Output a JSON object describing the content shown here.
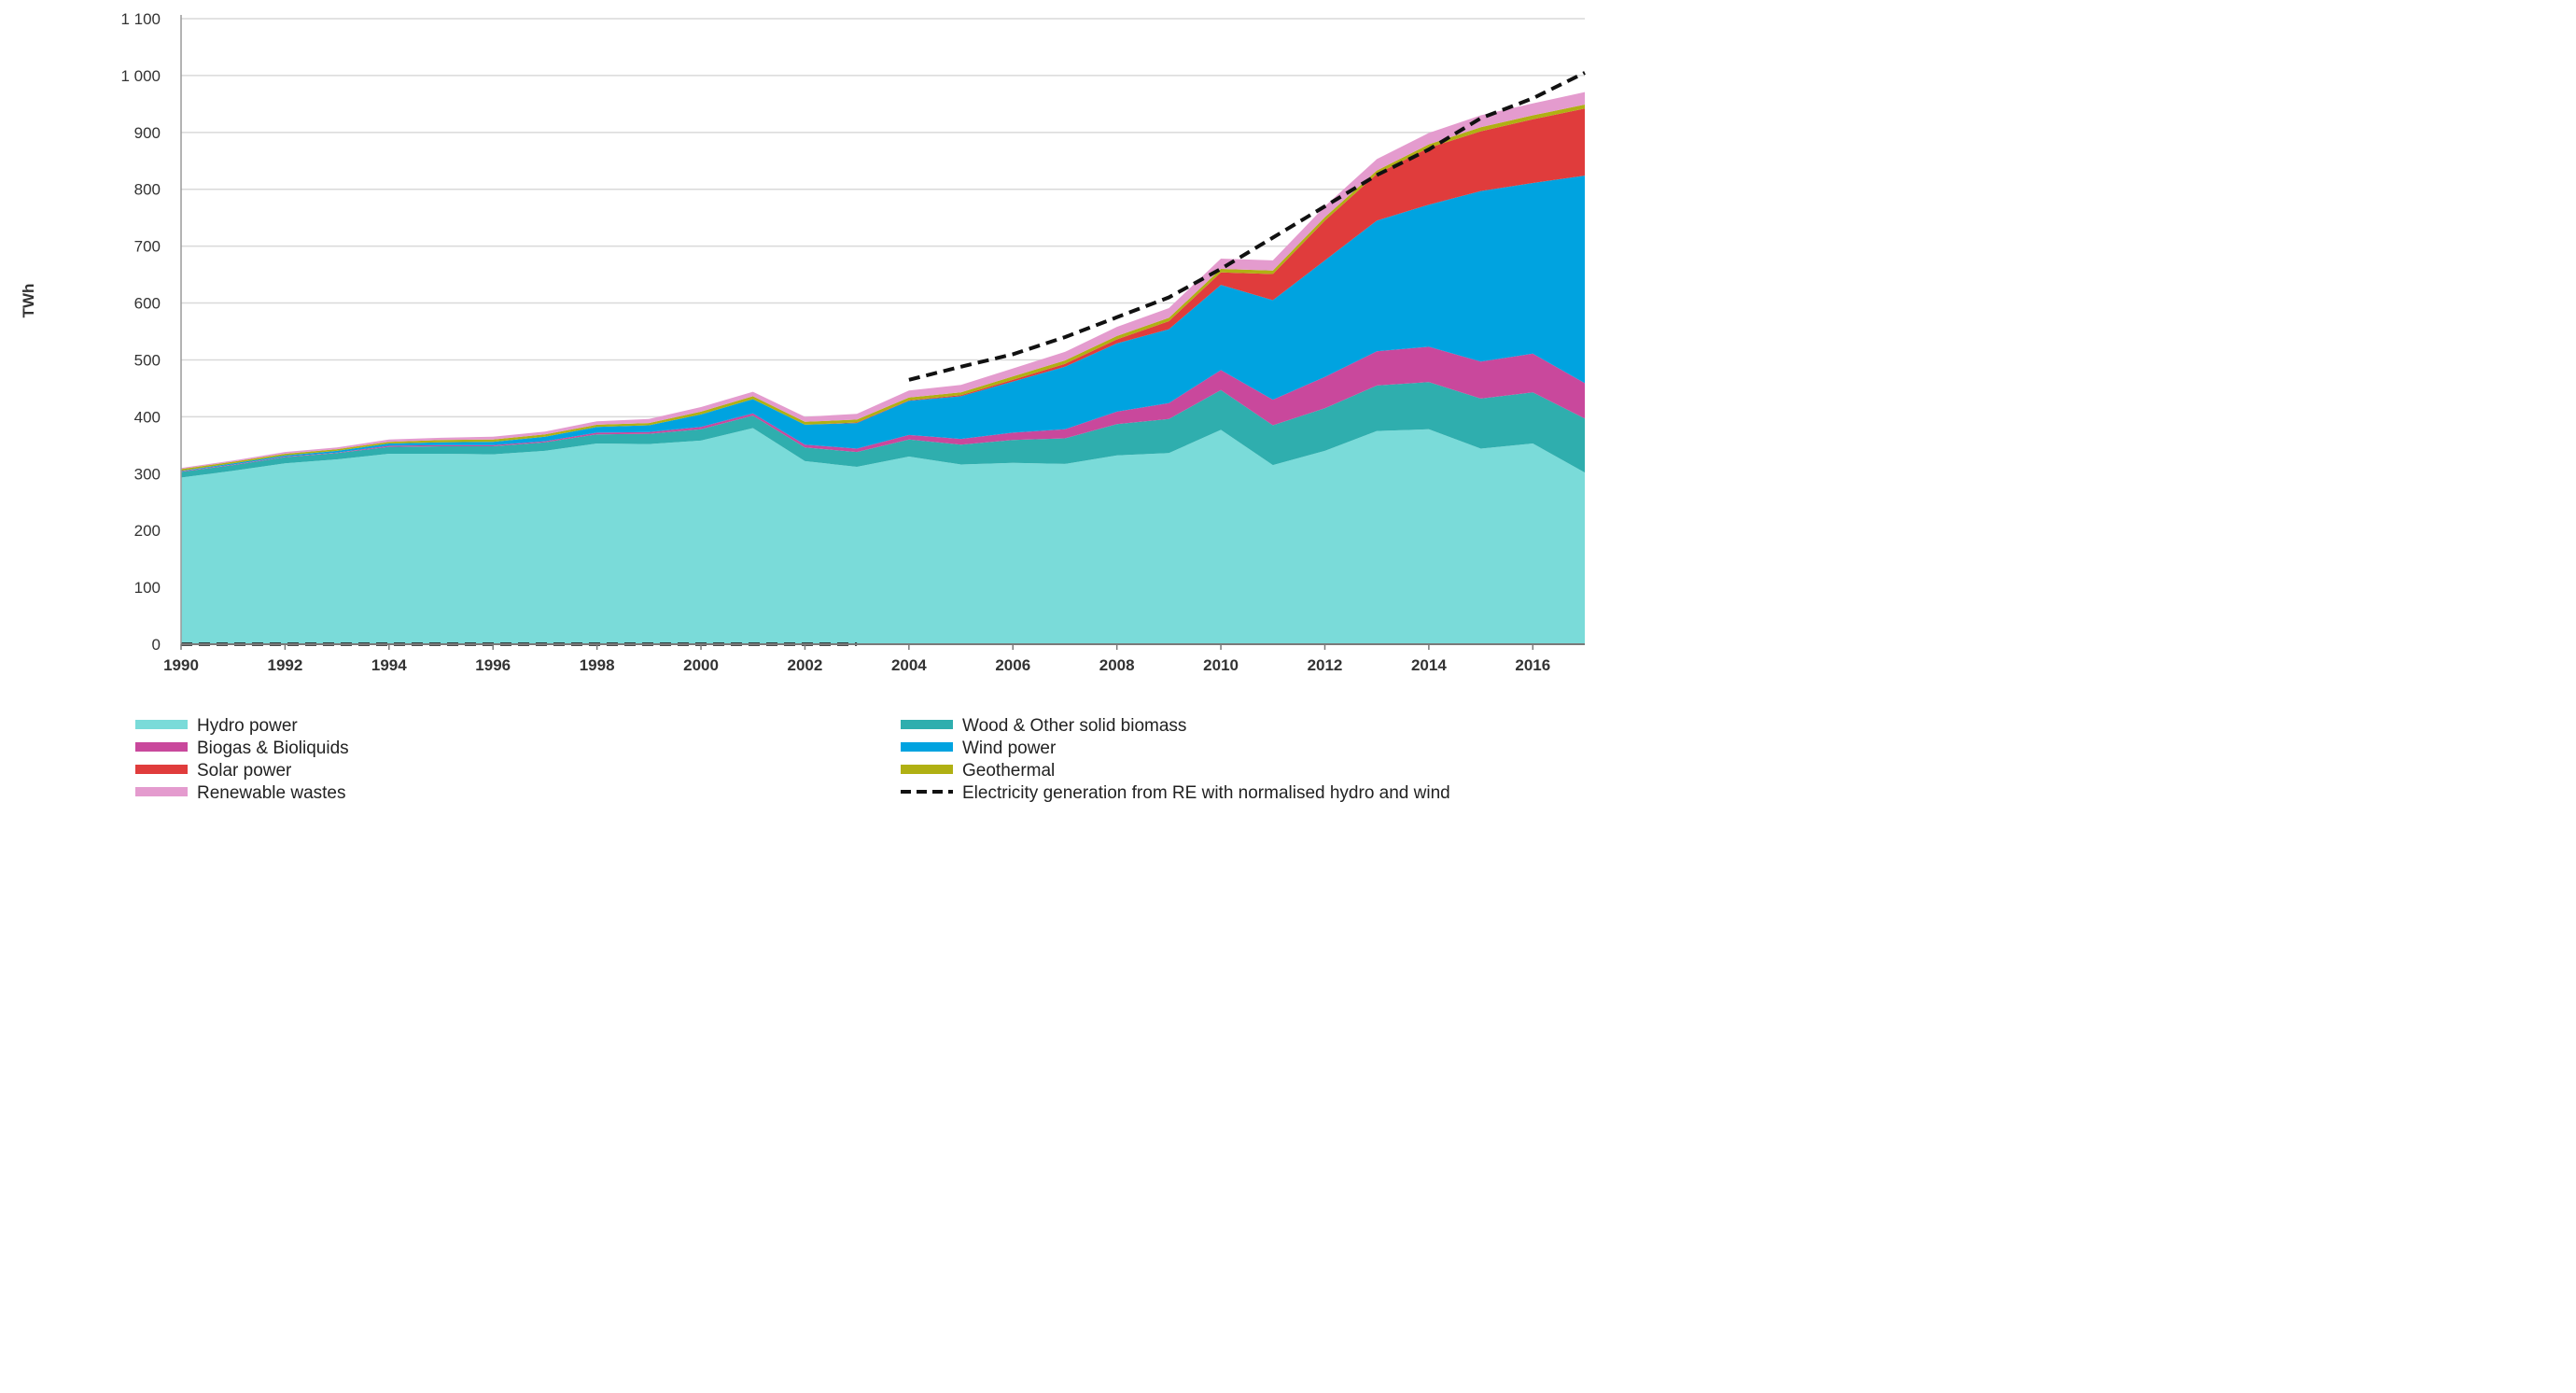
{
  "chart_data": {
    "type": "area",
    "stacked": true,
    "title": "",
    "xlabel": "",
    "ylabel": "TWh",
    "ylim": [
      0,
      1100
    ],
    "y_ticks": [
      0,
      100,
      200,
      300,
      400,
      500,
      600,
      700,
      800,
      900,
      1000,
      1100
    ],
    "y_tick_labels": [
      "0",
      "100",
      "200",
      "300",
      "400",
      "500",
      "600",
      "700",
      "800",
      "900",
      "1 000",
      "1 100"
    ],
    "x": [
      1990,
      1991,
      1992,
      1993,
      1994,
      1995,
      1996,
      1997,
      1998,
      1999,
      2000,
      2001,
      2002,
      2003,
      2004,
      2005,
      2006,
      2007,
      2008,
      2009,
      2010,
      2011,
      2012,
      2013,
      2014,
      2015,
      2016,
      2017
    ],
    "x_tick_labels": [
      "1990",
      "1992",
      "1994",
      "1996",
      "1998",
      "2000",
      "2002",
      "2004",
      "2006",
      "2008",
      "2010",
      "2012",
      "2014",
      "2016"
    ],
    "grid": true,
    "legend_position": "bottom",
    "series": [
      {
        "name": "Hydro power",
        "color": "#7adbd9",
        "values": [
          293,
          305,
          318,
          325,
          335,
          335,
          334,
          340,
          353,
          352,
          358,
          380,
          322,
          312,
          330,
          316,
          319,
          317,
          332,
          336,
          377,
          315,
          340,
          375,
          378,
          344,
          353,
          302
        ]
      },
      {
        "name": "Wood & Other solid biomass",
        "color": "#2faeae",
        "values": [
          10,
          10,
          11,
          11,
          12,
          13,
          14,
          15,
          16,
          18,
          20,
          22,
          24,
          26,
          30,
          35,
          40,
          45,
          55,
          60,
          70,
          70,
          75,
          80,
          83,
          88,
          90,
          95
        ]
      },
      {
        "name": "Biogas & Bioliquids",
        "color": "#c9489c",
        "values": [
          1,
          1,
          1,
          1,
          2,
          2,
          2,
          2,
          3,
          3,
          4,
          4,
          5,
          6,
          8,
          10,
          13,
          16,
          22,
          28,
          35,
          45,
          55,
          60,
          62,
          65,
          68,
          62
        ]
      },
      {
        "name": "Wind power",
        "color": "#00a3e0",
        "values": [
          1,
          2,
          2,
          3,
          4,
          5,
          6,
          8,
          10,
          12,
          22,
          25,
          35,
          45,
          60,
          75,
          90,
          110,
          120,
          130,
          150,
          175,
          205,
          230,
          250,
          300,
          300,
          365
        ]
      },
      {
        "name": "Solar power",
        "color": "#e03c3c",
        "values": [
          0,
          0,
          0,
          0,
          0,
          0,
          0,
          0,
          0,
          0,
          0,
          0,
          0,
          1,
          1,
          2,
          3,
          5,
          7,
          14,
          22,
          46,
          70,
          82,
          100,
          105,
          112,
          118
        ]
      },
      {
        "name": "Geothermal",
        "color": "#b0b013",
        "values": [
          3,
          3,
          3,
          3,
          3,
          4,
          4,
          4,
          4,
          4,
          5,
          5,
          5,
          5,
          5,
          5,
          6,
          6,
          6,
          6,
          6,
          6,
          6,
          6,
          6,
          7,
          7,
          7
        ]
      },
      {
        "name": "Renewable wastes",
        "color": "#e49bce",
        "values": [
          2,
          2,
          3,
          3,
          4,
          4,
          5,
          5,
          6,
          7,
          8,
          8,
          9,
          10,
          12,
          13,
          14,
          15,
          16,
          17,
          18,
          18,
          19,
          20,
          20,
          21,
          21,
          22
        ]
      }
    ],
    "dashed_series": {
      "name": "Electricity generation from RE with normalised hydro and wind",
      "color": "#111111",
      "zero_segment": {
        "x": [
          1990,
          2003
        ],
        "values": [
          0,
          0
        ]
      },
      "x": [
        2004,
        2005,
        2006,
        2007,
        2008,
        2009,
        2010,
        2011,
        2012,
        2013,
        2014,
        2015,
        2016,
        2017
      ],
      "values": [
        465,
        488,
        510,
        540,
        575,
        610,
        660,
        715,
        770,
        825,
        870,
        925,
        960,
        1005
      ]
    }
  }
}
